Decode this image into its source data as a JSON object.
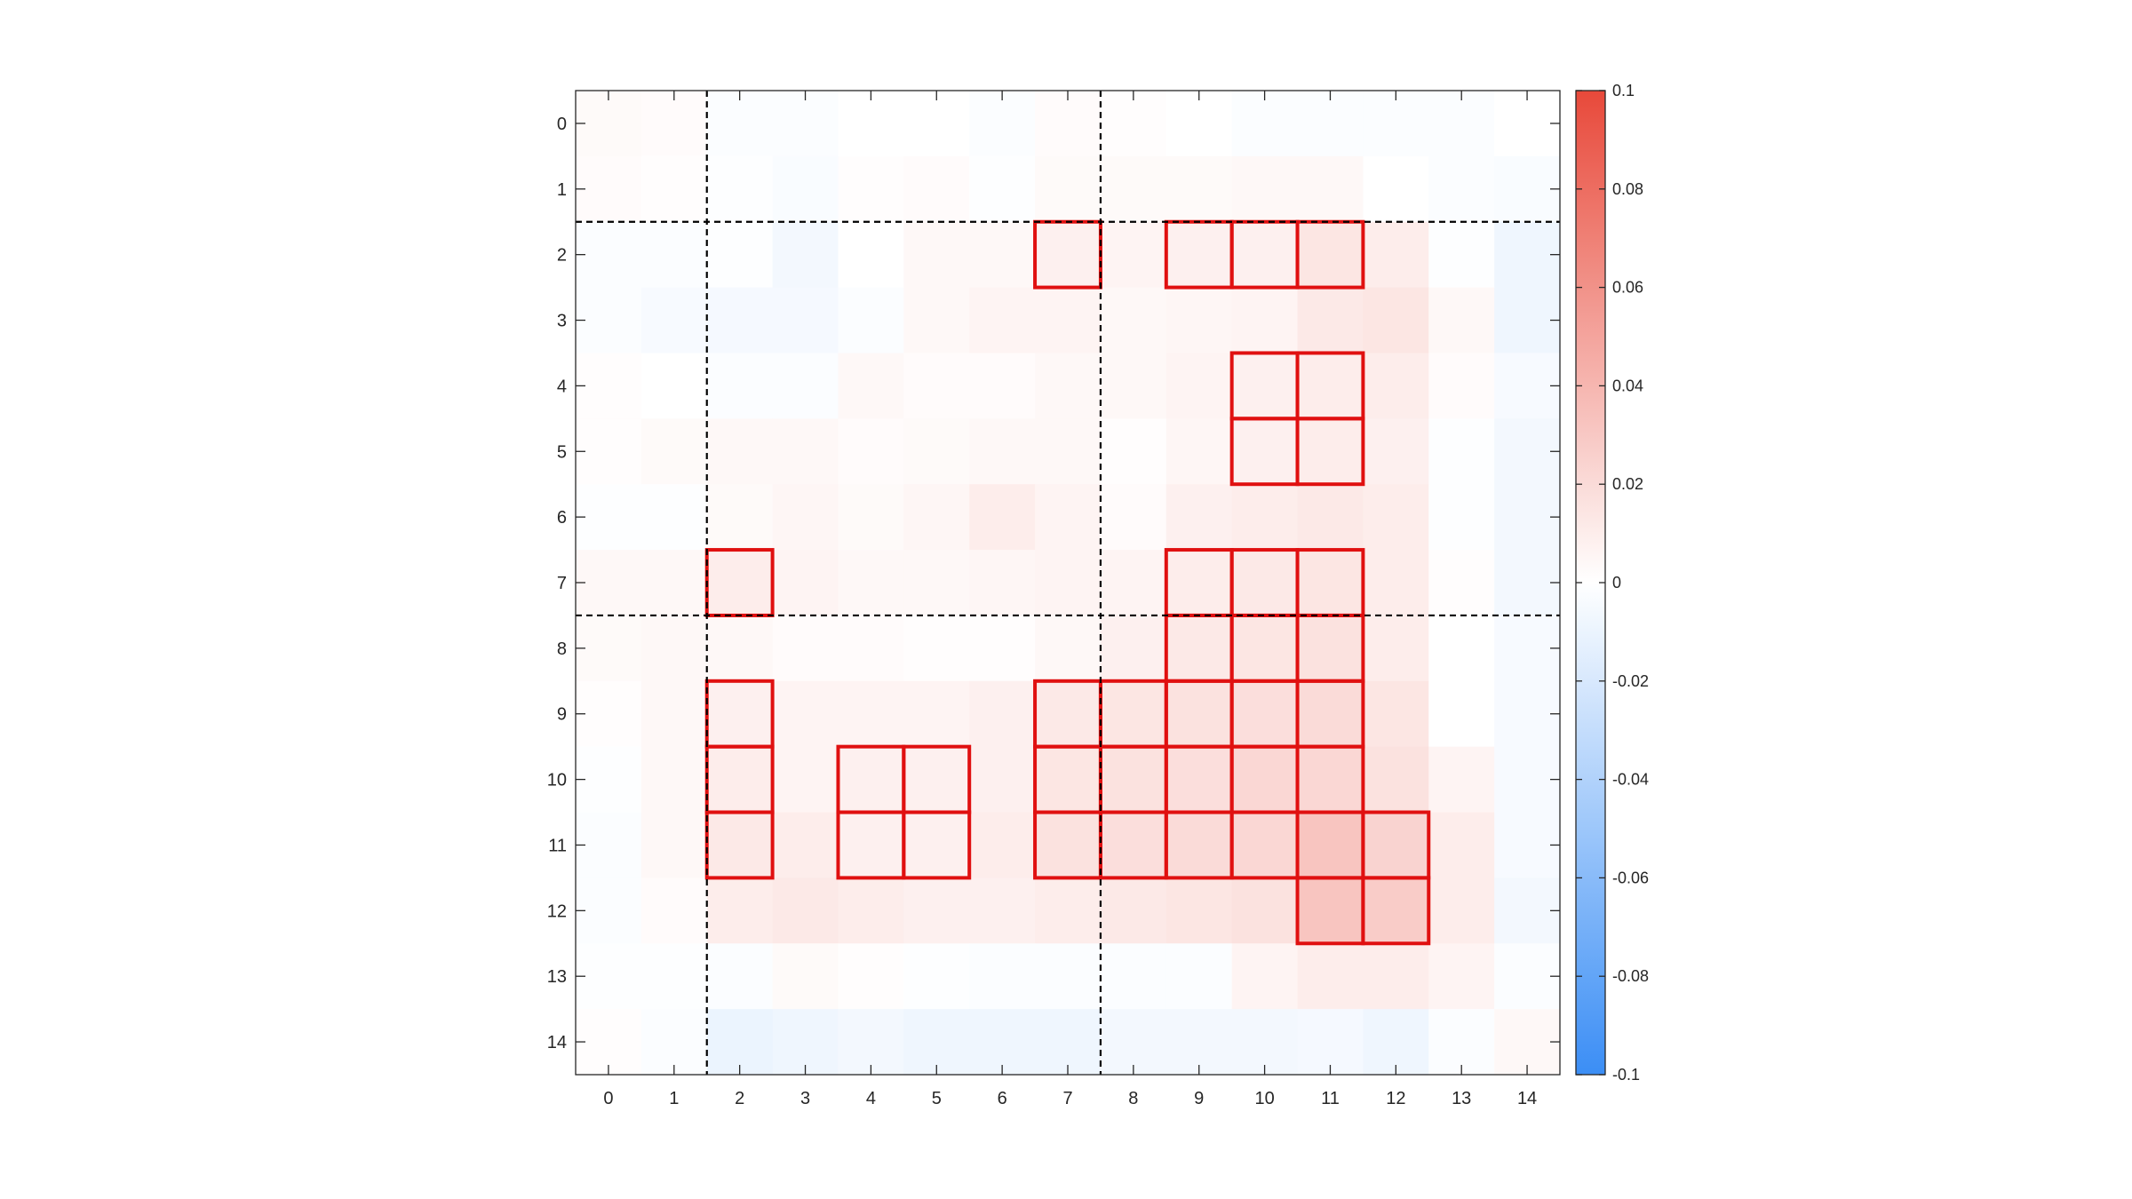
{
  "chart_data": {
    "type": "heatmap",
    "title": "",
    "xlabel": "",
    "ylabel": "",
    "x_labels": [
      "0",
      "1",
      "2",
      "3",
      "4",
      "5",
      "6",
      "7",
      "8",
      "9",
      "10",
      "11",
      "12",
      "13",
      "14"
    ],
    "y_labels": [
      "0",
      "1",
      "2",
      "3",
      "4",
      "5",
      "6",
      "7",
      "8",
      "9",
      "10",
      "11",
      "12",
      "13",
      "14"
    ],
    "colorbar": {
      "range": [
        -0.1,
        0.1
      ],
      "ticks": [
        0.1,
        0.08,
        0.06,
        0.04,
        0.02,
        0,
        -0.02,
        -0.04,
        -0.06,
        -0.08,
        -0.1
      ],
      "tick_labels": [
        "0.1",
        "0.08",
        "0.06",
        "0.04",
        "0.02",
        "0",
        "-0.02",
        "-0.04",
        "-0.06",
        "-0.08",
        "-0.1"
      ],
      "colormap": "blue-white-red",
      "low_color": "#3b8ef5",
      "mid_color": "#ffffff",
      "high_color": "#e8493a"
    },
    "values": [
      [
        0.003,
        0.002,
        -0.002,
        -0.002,
        0.0,
        0.0,
        -0.002,
        0.002,
        0.001,
        0.0,
        -0.002,
        -0.002,
        -0.002,
        -0.002,
        0.0
      ],
      [
        0.002,
        0.001,
        -0.001,
        -0.003,
        0.001,
        0.002,
        -0.001,
        0.003,
        0.003,
        0.003,
        0.004,
        0.004,
        0.0,
        -0.002,
        -0.003
      ],
      [
        -0.002,
        -0.002,
        -0.001,
        -0.006,
        0.0,
        0.004,
        0.004,
        0.008,
        0.006,
        0.008,
        0.008,
        0.014,
        0.01,
        -0.001,
        -0.008
      ],
      [
        -0.002,
        -0.004,
        -0.005,
        -0.005,
        -0.002,
        0.004,
        0.006,
        0.006,
        0.004,
        0.005,
        0.006,
        0.012,
        0.014,
        0.004,
        -0.008
      ],
      [
        0.001,
        0.0,
        -0.002,
        -0.002,
        0.004,
        0.002,
        0.002,
        0.004,
        0.004,
        0.006,
        0.008,
        0.01,
        0.01,
        0.002,
        -0.004
      ],
      [
        0.001,
        0.003,
        0.004,
        0.004,
        0.002,
        0.003,
        0.004,
        0.004,
        0.001,
        0.005,
        0.008,
        0.01,
        0.008,
        -0.001,
        -0.006
      ],
      [
        -0.001,
        -0.001,
        0.003,
        0.005,
        0.003,
        0.005,
        0.01,
        0.006,
        0.002,
        0.008,
        0.01,
        0.012,
        0.01,
        -0.001,
        -0.006
      ],
      [
        0.004,
        0.004,
        0.01,
        0.006,
        0.004,
        0.004,
        0.005,
        0.006,
        0.006,
        0.01,
        0.012,
        0.014,
        0.01,
        0.001,
        -0.006
      ],
      [
        0.003,
        0.004,
        0.004,
        0.002,
        0.002,
        0.001,
        0.001,
        0.004,
        0.008,
        0.012,
        0.014,
        0.016,
        0.01,
        0.0,
        -0.004
      ],
      [
        0.001,
        0.004,
        0.008,
        0.006,
        0.006,
        0.006,
        0.008,
        0.012,
        0.014,
        0.016,
        0.018,
        0.02,
        0.014,
        0.0,
        -0.004
      ],
      [
        -0.001,
        0.004,
        0.01,
        0.006,
        0.008,
        0.008,
        0.008,
        0.014,
        0.016,
        0.018,
        0.022,
        0.022,
        0.016,
        0.006,
        -0.004
      ],
      [
        -0.002,
        0.004,
        0.012,
        0.01,
        0.008,
        0.008,
        0.01,
        0.016,
        0.018,
        0.02,
        0.022,
        0.032,
        0.024,
        0.01,
        -0.004
      ],
      [
        -0.002,
        0.002,
        0.01,
        0.012,
        0.01,
        0.008,
        0.008,
        0.01,
        0.012,
        0.014,
        0.016,
        0.032,
        0.028,
        0.01,
        -0.006
      ],
      [
        -0.001,
        -0.001,
        -0.002,
        0.003,
        0.001,
        -0.001,
        -0.002,
        -0.002,
        -0.002,
        -0.002,
        0.006,
        0.01,
        0.01,
        0.006,
        -0.002
      ],
      [
        0.001,
        -0.002,
        -0.01,
        -0.008,
        -0.006,
        -0.008,
        -0.008,
        -0.008,
        -0.006,
        -0.006,
        -0.006,
        -0.005,
        -0.008,
        -0.002,
        0.004
      ]
    ],
    "highlighted_cells": [
      [
        7,
        2
      ],
      [
        9,
        2
      ],
      [
        10,
        2
      ],
      [
        11,
        2
      ],
      [
        10,
        4
      ],
      [
        11,
        4
      ],
      [
        10,
        5
      ],
      [
        11,
        5
      ],
      [
        2,
        7
      ],
      [
        9,
        7
      ],
      [
        10,
        7
      ],
      [
        11,
        7
      ],
      [
        9,
        8
      ],
      [
        10,
        8
      ],
      [
        11,
        8
      ],
      [
        2,
        9
      ],
      [
        7,
        9
      ],
      [
        8,
        9
      ],
      [
        9,
        9
      ],
      [
        10,
        9
      ],
      [
        11,
        9
      ],
      [
        2,
        10
      ],
      [
        4,
        10
      ],
      [
        5,
        10
      ],
      [
        7,
        10
      ],
      [
        8,
        10
      ],
      [
        9,
        10
      ],
      [
        10,
        10
      ],
      [
        11,
        10
      ],
      [
        2,
        11
      ],
      [
        4,
        11
      ],
      [
        5,
        11
      ],
      [
        7,
        11
      ],
      [
        8,
        11
      ],
      [
        9,
        11
      ],
      [
        10,
        11
      ],
      [
        11,
        11
      ],
      [
        12,
        11
      ],
      [
        11,
        12
      ],
      [
        12,
        12
      ]
    ],
    "highlight_color": "#e01010",
    "divider_lines": {
      "x_between": [
        [
          1,
          2
        ],
        [
          7,
          8
        ]
      ],
      "y_between": [
        [
          1,
          2
        ],
        [
          7,
          8
        ]
      ],
      "style": "dashed",
      "color": "#000000"
    },
    "grid": false,
    "legend": "colorbar-right"
  }
}
